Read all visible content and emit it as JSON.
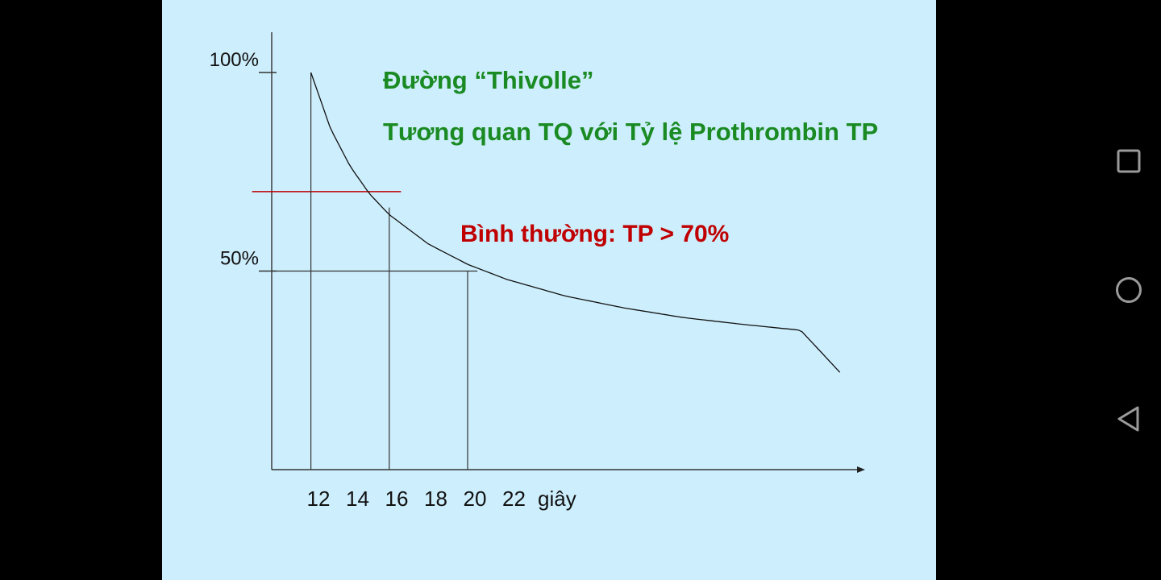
{
  "chart_data": {
    "type": "line",
    "title": "Đường “Thivolle”",
    "subtitle": "Tương quan TQ với Tỷ lệ Prothrombin TP",
    "annotation": "Bình thường: TP > 70%",
    "x_ticks": [
      "12",
      "14",
      "16",
      "18",
      "20",
      "22"
    ],
    "x_unit_label": "giây",
    "y_ticks": [
      {
        "label": "100%",
        "value": 100
      },
      {
        "label": "50%",
        "value": 50
      }
    ],
    "ylim": [
      0,
      100
    ],
    "xlim": [
      10,
      40
    ],
    "series": [
      {
        "x": [
          12,
          13,
          14,
          15,
          16,
          18,
          20,
          22,
          25,
          28,
          31,
          34,
          37,
          39
        ],
        "y": [
          100,
          85.9,
          76.4,
          69.4,
          64.2,
          56.8,
          51.7,
          47.9,
          43.7,
          40.7,
          38.3,
          36.6,
          35.1,
          24.5
        ]
      }
    ],
    "reference_lines": [
      {
        "kind": "horizontal",
        "y": 70,
        "x_from": 9,
        "x_to": 16.6,
        "color": "#c00000"
      },
      {
        "kind": "horizontal",
        "y": 50,
        "x_from": 10,
        "x_to": 20.5,
        "color": "#333333"
      },
      {
        "kind": "vertical",
        "x": 12,
        "y_from": 0,
        "y_to": 100,
        "color": "#333333"
      },
      {
        "kind": "vertical",
        "x": 16,
        "y_from": 0,
        "y_to": 66,
        "color": "#333333"
      },
      {
        "kind": "vertical",
        "x": 20,
        "y_from": 0,
        "y_to": 50,
        "color": "#333333"
      }
    ],
    "grid": false,
    "legend": "none",
    "colors": {
      "curve": "#111111",
      "title": "#1a8a22",
      "annotation": "#c00000",
      "background": "#cdeefc"
    }
  },
  "navigation": {
    "icons": [
      "square-recent-apps-icon",
      "circle-home-icon",
      "triangle-back-icon"
    ]
  }
}
